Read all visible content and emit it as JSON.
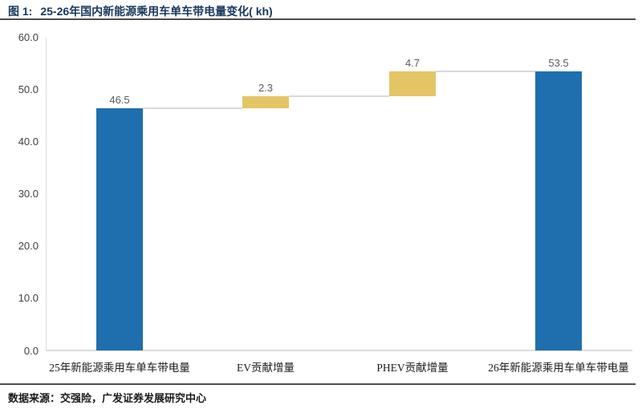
{
  "figure": {
    "label": "图 1:",
    "title": "25-26年国内新能源乘用车单车带电量变化( kh)",
    "source": "数据来源：交强险，广发证券发展研究中心"
  },
  "chart_data": {
    "type": "bar",
    "subtype": "waterfall",
    "title": "25-26年国内新能源乘用车单车带电量变化( kh)",
    "categories": [
      "25年新能源乘用车单车带电量",
      "EV贡献增量",
      "PHEV贡献增量",
      "26年新能源乘用车单车带电量"
    ],
    "values": [
      46.5,
      2.3,
      4.7,
      53.5
    ],
    "value_labels": [
      "46.5",
      "2.3",
      "4.7",
      "53.5"
    ],
    "bar_kinds": [
      "total",
      "increment",
      "increment",
      "total"
    ],
    "cumulative_levels": [
      46.5,
      48.8,
      53.5
    ],
    "y_ticks": [
      0,
      10,
      20,
      30,
      40,
      50,
      60
    ],
    "y_tick_labels": [
      "0.0",
      "10.0",
      "20.0",
      "30.0",
      "40.0",
      "50.0",
      "60.0"
    ],
    "ylim": [
      0,
      60
    ],
    "xlabel": "",
    "ylabel": "",
    "grid": false,
    "legend": null,
    "colors": {
      "total_bar": "#1F6FAE",
      "increment_bar": "#E3C566",
      "connector": "#D9D9D9",
      "axis_line": "#DCDCDC",
      "value_label": "#595959",
      "tick_label": "#3F3F3F",
      "title": "#17375E"
    }
  }
}
